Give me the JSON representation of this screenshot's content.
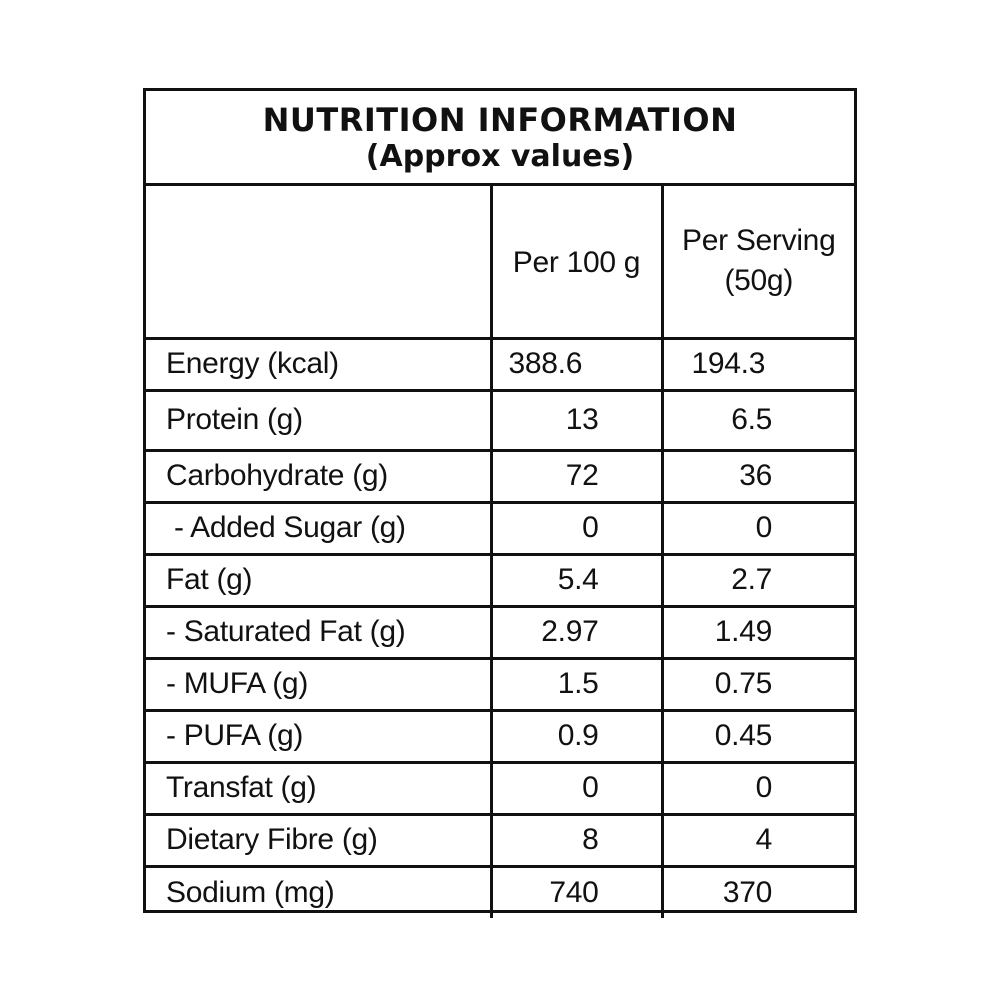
{
  "header": {
    "title": "NUTRITION INFORMATION",
    "subtitle": "(Approx values)"
  },
  "columns": {
    "per_100g": "Per 100 g",
    "per_serving_line1": "Per Serving",
    "per_serving_line2": "(50g)"
  },
  "rows": [
    {
      "label": "Energy (kcal)",
      "per_100g": "388.6",
      "per_serving": "194.3"
    },
    {
      "label": "Protein (g)",
      "per_100g": "13",
      "per_serving": "6.5"
    },
    {
      "label": "Carbohydrate (g)",
      "per_100g": "72",
      "per_serving": "36"
    },
    {
      "label": " - Added Sugar (g)",
      "per_100g": "0",
      "per_serving": "0"
    },
    {
      "label": "Fat (g)",
      "per_100g": "5.4",
      "per_serving": "2.7"
    },
    {
      "label": "- Saturated Fat (g)",
      "per_100g": "2.97",
      "per_serving": "1.49"
    },
    {
      "label": "- MUFA (g)",
      "per_100g": "1.5",
      "per_serving": "0.75"
    },
    {
      "label": "- PUFA (g)",
      "per_100g": "0.9",
      "per_serving": "0.45"
    },
    {
      "label": "Transfat (g)",
      "per_100g": "0",
      "per_serving": "0"
    },
    {
      "label": "Dietary Fibre (g)",
      "per_100g": "8",
      "per_serving": "4"
    },
    {
      "label": "Sodium (mg)",
      "per_100g": "740",
      "per_serving": "370"
    }
  ]
}
